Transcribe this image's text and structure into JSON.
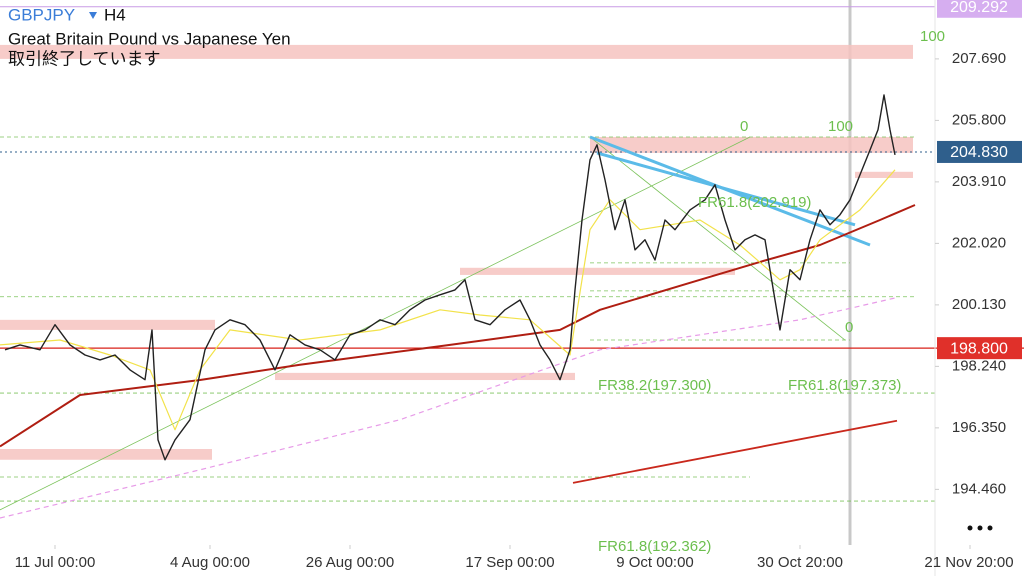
{
  "header": {
    "symbol": "GBPJPY",
    "timeframe": "H4",
    "description": "Great Britain Pound vs Japanese Yen",
    "status": "取引終了しています"
  },
  "chart_data": {
    "type": "line",
    "xlim": [
      0,
      935
    ],
    "ylim": [
      192.75,
      209.5
    ],
    "xticks": [
      {
        "value": 55,
        "label": "11 Jul 00:00"
      },
      {
        "value": 210,
        "label": "4 Aug 00:00"
      },
      {
        "value": 350,
        "label": "26 Aug 00:00"
      },
      {
        "value": 510,
        "label": "17 Sep 00:00"
      },
      {
        "value": 655,
        "label": "9 Oct 00:00"
      },
      {
        "value": 800,
        "label": "30 Oct 20:00"
      },
      {
        "value": 970,
        "label": "21 Nov 20:00"
      }
    ],
    "yticks": [
      {
        "value": 207.69,
        "label": "207.690"
      },
      {
        "value": 205.8,
        "label": "205.800"
      },
      {
        "value": 203.91,
        "label": "203.910"
      },
      {
        "value": 202.02,
        "label": "202.020"
      },
      {
        "value": 200.13,
        "label": "200.130"
      },
      {
        "value": 198.24,
        "label": "198.240"
      },
      {
        "value": 196.35,
        "label": "196.350"
      },
      {
        "value": 194.46,
        "label": "194.460"
      }
    ],
    "price_tags": [
      {
        "value": 209.292,
        "label": "209.292",
        "color": "#d6aef0"
      },
      {
        "value": 204.83,
        "label": "204.830",
        "color": "#2f5f8c"
      },
      {
        "value": 198.8,
        "label": "198.800",
        "color": "#e0302a"
      }
    ],
    "series": [
      {
        "color": "#222222",
        "width": 1.4,
        "x": [
          5,
          20,
          40,
          55,
          70,
          85,
          100,
          115,
          130,
          145,
          152,
          158,
          165,
          175,
          190,
          205,
          215,
          230,
          245,
          260,
          275,
          290,
          305,
          320,
          335,
          350,
          365,
          380,
          395,
          410,
          425,
          440,
          455,
          465,
          475,
          490,
          505,
          520,
          530,
          540,
          550,
          560,
          570,
          575,
          582,
          590,
          597,
          605,
          615,
          625,
          635,
          645,
          655,
          665,
          675,
          690,
          705,
          715,
          725,
          735,
          745,
          755,
          765,
          775,
          780,
          790,
          800,
          810,
          820,
          830,
          840,
          850,
          860,
          870,
          878,
          884,
          890,
          895
        ],
        "values": [
          198.75,
          198.9,
          198.75,
          199.52,
          198.9,
          198.59,
          198.44,
          198.59,
          198.13,
          197.83,
          199.36,
          195.98,
          195.37,
          195.98,
          196.6,
          198.75,
          199.36,
          199.67,
          199.52,
          199.05,
          198.13,
          199.21,
          198.9,
          198.75,
          198.44,
          199.21,
          199.36,
          199.67,
          199.52,
          199.98,
          200.28,
          200.44,
          200.59,
          200.9,
          199.67,
          199.52,
          199.98,
          200.28,
          199.67,
          198.9,
          198.44,
          197.83,
          198.75,
          200.59,
          202.74,
          204.59,
          205.05,
          203.97,
          202.44,
          203.36,
          201.82,
          202.13,
          201.51,
          202.74,
          202.44,
          203.05,
          203.36,
          203.82,
          202.74,
          201.82,
          202.13,
          202.28,
          202.13,
          200.28,
          199.36,
          201.21,
          200.9,
          202.13,
          203.05,
          202.59,
          202.9,
          203.36,
          204.13,
          204.89,
          205.51,
          206.58,
          205.51,
          204.74
        ]
      },
      {
        "color": "#f2e24a",
        "width": 1.2,
        "x": [
          0,
          60,
          110,
          150,
          175,
          200,
          230,
          300,
          380,
          440,
          480,
          530,
          570,
          590,
          610,
          640,
          700,
          740,
          780,
          800,
          820,
          860,
          895
        ],
        "values": [
          198.9,
          199.05,
          198.59,
          198.13,
          196.29,
          198.13,
          199.36,
          199.05,
          199.36,
          199.98,
          199.82,
          199.67,
          198.59,
          202.44,
          203.36,
          202.44,
          202.74,
          201.97,
          200.9,
          201.21,
          202.13,
          203.05,
          204.28
        ]
      },
      {
        "color": "#b01e12",
        "width": 2,
        "x": [
          0,
          80,
          200,
          300,
          450,
          560,
          600,
          700,
          760,
          820,
          880,
          915
        ],
        "values": [
          195.78,
          197.36,
          197.82,
          198.29,
          198.9,
          199.36,
          199.98,
          200.9,
          201.45,
          201.97,
          202.74,
          203.2
        ]
      },
      {
        "color": "#e79be8",
        "width": 1.2,
        "dashed": true,
        "x": [
          0,
          200,
          400,
          600,
          800,
          895
        ],
        "values": [
          193.58,
          195.06,
          196.6,
          198.75,
          199.67,
          200.34
        ]
      }
    ],
    "zones": [
      {
        "from": 0,
        "to": 913,
        "top": 208.12,
        "bottom": 207.69
      },
      {
        "from": 590,
        "to": 913,
        "top": 205.29,
        "bottom": 204.8
      },
      {
        "from": 855,
        "to": 913,
        "top": 204.22,
        "bottom": 204.03
      },
      {
        "from": 460,
        "to": 735,
        "top": 201.27,
        "bottom": 201.05
      },
      {
        "from": 0,
        "to": 215,
        "top": 199.67,
        "bottom": 199.36
      },
      {
        "from": 275,
        "to": 575,
        "top": 198.04,
        "bottom": 197.82
      },
      {
        "from": 0,
        "to": 212,
        "top": 195.7,
        "bottom": 195.37
      }
    ],
    "levels": [
      {
        "price": 205.29,
        "from": 0,
        "to": 915
      },
      {
        "price": 201.42,
        "from": 590,
        "to": 850
      },
      {
        "price": 200.56,
        "from": 590,
        "to": 850
      },
      {
        "price": 200.38,
        "from": 0,
        "to": 915
      },
      {
        "price": 199.05,
        "from": 590,
        "to": 850
      },
      {
        "price": 197.42,
        "from": 0,
        "to": 935
      },
      {
        "price": 194.84,
        "from": 0,
        "to": 750
      },
      {
        "price": 194.1,
        "from": 0,
        "to": 935
      }
    ],
    "trend_lines": [
      {
        "x1": 0,
        "y1": 193.83,
        "x2": 750,
        "y2": 205.29,
        "color": "#7cc35c",
        "width": 0.8
      },
      {
        "x1": 590,
        "y1": 205.29,
        "x2": 845,
        "y2": 199.05,
        "color": "#7cc35c",
        "width": 0.8
      },
      {
        "x1": 590,
        "y1": 205.29,
        "x2": 870,
        "y2": 201.97,
        "color": "#5bbbe8",
        "width": 3
      },
      {
        "x1": 597,
        "y1": 204.8,
        "x2": 855,
        "y2": 202.59,
        "color": "#5bbbe8",
        "width": 3
      },
      {
        "x1": 573,
        "y1": 194.66,
        "x2": 897,
        "y2": 196.57,
        "color": "#c9281c",
        "width": 1.8
      },
      {
        "x1": 0,
        "y1": 198.8,
        "x2": 1024,
        "y2": 198.8,
        "color": "#d9221a",
        "width": 1.2
      },
      {
        "x1": 0,
        "y1": 209.292,
        "x2": 935,
        "y2": 209.292,
        "color": "#c99be6",
        "width": 1
      }
    ],
    "annotations": [
      "100",
      "0",
      "100",
      "FR61.8(202.919)",
      "0",
      "FR38.2(197.300)",
      "FR61.8(197.373)",
      "FR61.8(192.362)"
    ]
  }
}
